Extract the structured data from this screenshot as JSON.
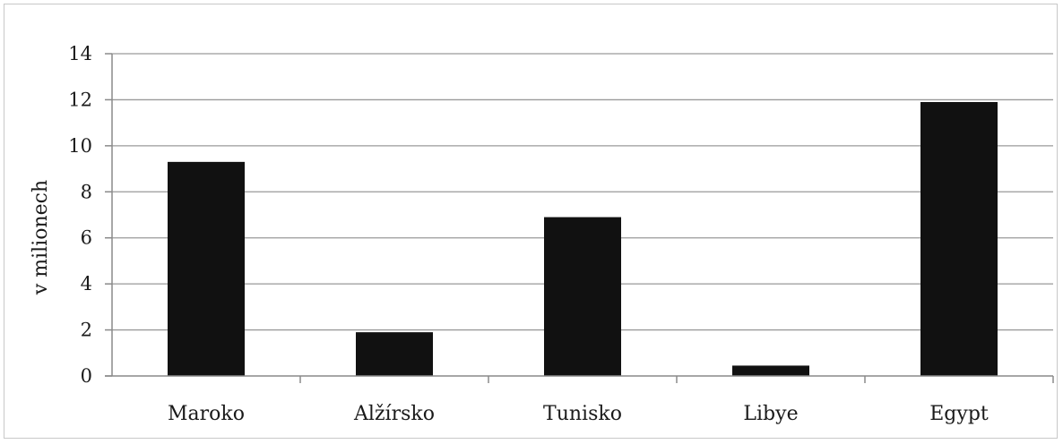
{
  "chart_data": {
    "type": "bar",
    "title": "",
    "xlabel": "",
    "ylabel": "v milionech",
    "categories": [
      "Maroko",
      "Alžírsko",
      "Tunisko",
      "Libye",
      "Egypt"
    ],
    "values": [
      9.3,
      1.9,
      6.9,
      0.45,
      11.9
    ],
    "ylim": [
      0,
      14
    ],
    "yticks": [
      "0",
      "2",
      "4",
      "6",
      "8",
      "10",
      "12",
      "14"
    ],
    "grid": true,
    "legend": "none",
    "bar_color": "#111111",
    "grid_color": "#9a9a9a"
  }
}
